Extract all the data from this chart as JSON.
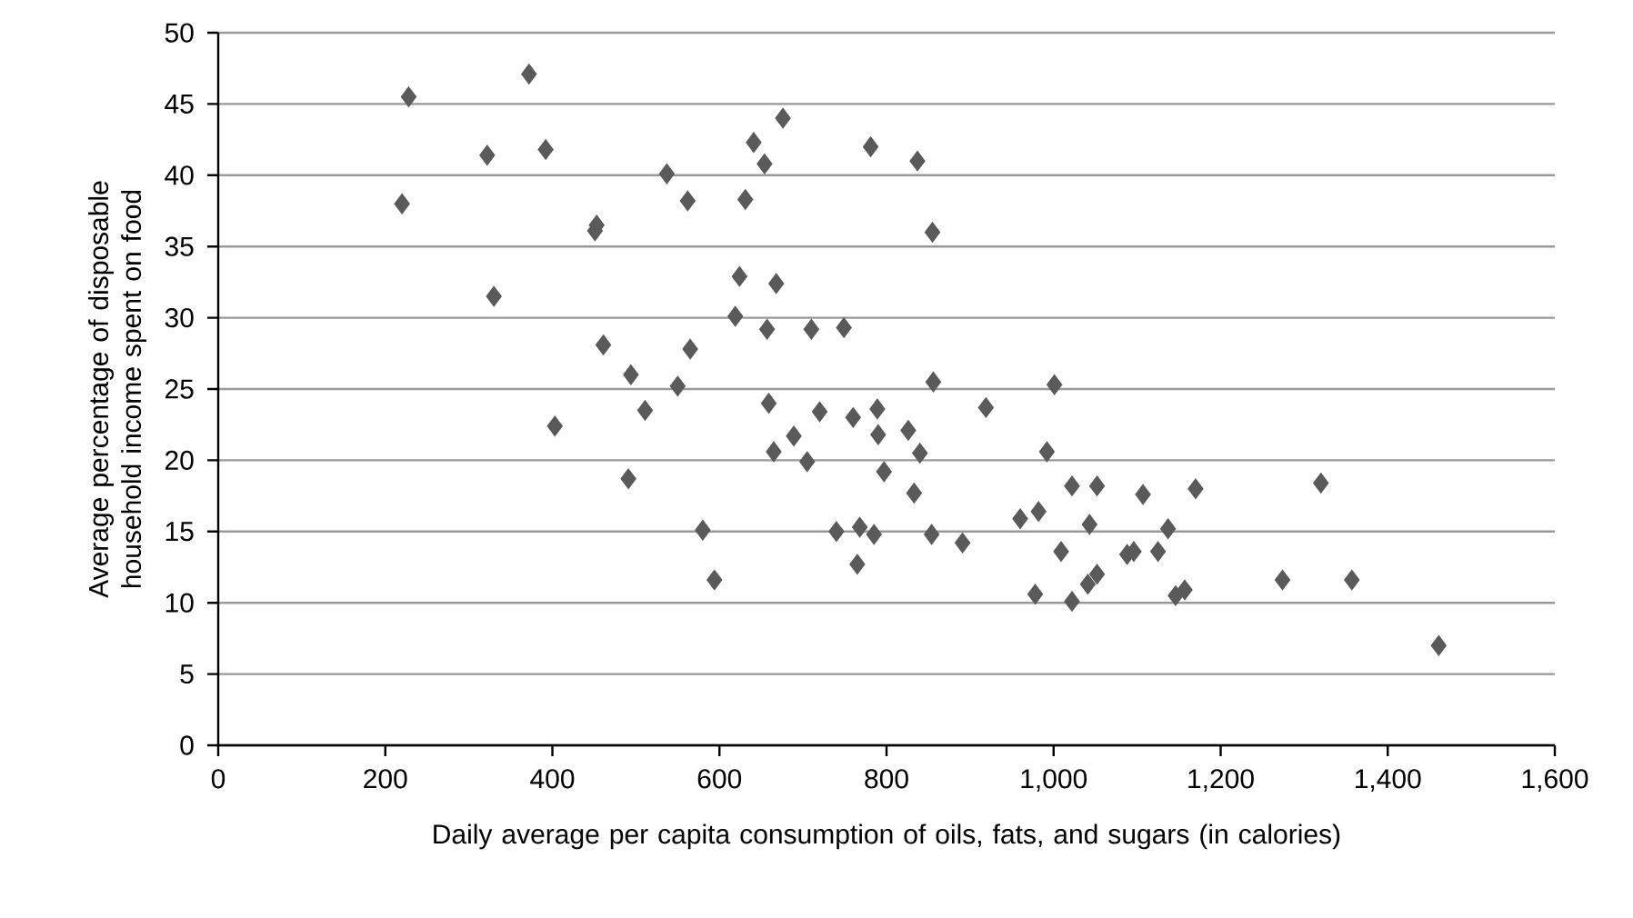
{
  "chart_data": {
    "type": "scatter",
    "xlabel": "Daily average per capita consumption of oils, fats, and sugars (in calories)",
    "ylabel": "Average percentage of disposable household income spent on food",
    "x": [
      228,
      372,
      322,
      392,
      537,
      562,
      220,
      453,
      451,
      330,
      461,
      565,
      494,
      550,
      511,
      403,
      491,
      580,
      594,
      676,
      641,
      654,
      781,
      837,
      631,
      855,
      624,
      668,
      619,
      657,
      710,
      749,
      856,
      1001,
      659,
      720,
      760,
      789,
      919,
      689,
      790,
      826,
      665,
      705,
      840,
      992,
      797,
      833,
      1022,
      1052,
      1107,
      960,
      982,
      740,
      768,
      785,
      854,
      891,
      1043,
      1009,
      765,
      1088,
      1096,
      1125,
      1052,
      1041,
      978,
      1022,
      1170,
      1320,
      1137,
      1146,
      1157,
      1274,
      1357,
      1461
    ],
    "values": [
      45.5,
      47.1,
      41.4,
      41.8,
      40.1,
      38.2,
      38.0,
      36.5,
      36.1,
      31.5,
      28.1,
      27.8,
      26.0,
      25.2,
      23.5,
      22.4,
      18.7,
      15.1,
      11.6,
      44.0,
      42.3,
      40.8,
      42.0,
      41.0,
      38.3,
      36.0,
      32.9,
      32.4,
      30.1,
      29.2,
      29.2,
      29.3,
      25.5,
      25.3,
      24.0,
      23.4,
      23.0,
      23.6,
      23.7,
      21.7,
      21.8,
      22.1,
      20.6,
      19.9,
      20.5,
      20.6,
      19.2,
      17.7,
      18.2,
      18.2,
      17.6,
      15.9,
      16.4,
      15.0,
      15.3,
      14.8,
      14.8,
      14.2,
      15.5,
      13.6,
      12.7,
      13.4,
      13.6,
      13.6,
      12.0,
      11.3,
      10.6,
      10.1,
      18.0,
      18.4,
      15.2,
      10.5,
      10.9,
      11.6,
      11.6,
      7.0
    ],
    "color": "#5a5a5a",
    "marker": "diamond",
    "xlim": [
      0,
      1600
    ],
    "ylim": [
      0,
      50
    ],
    "xticks": [
      0,
      200,
      400,
      600,
      800,
      {
        "value": 1000,
        "label": "1,000"
      },
      {
        "value": 1200,
        "label": "1,200"
      },
      {
        "value": 1400,
        "label": "1,400"
      },
      {
        "value": 1600,
        "label": "1,600"
      }
    ],
    "yticks": [
      0,
      5,
      10,
      15,
      20,
      25,
      30,
      35,
      40,
      45,
      50
    ],
    "grid": "y"
  }
}
